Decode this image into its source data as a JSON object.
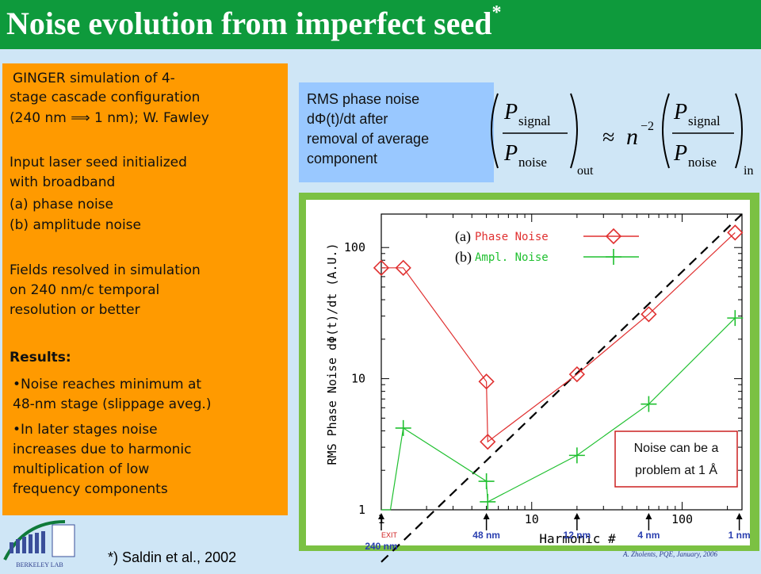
{
  "title": "Noise evolution from imperfect seed",
  "title_mark": "*",
  "left_panel": {
    "lines": [
      " GINGER simulation of 4-",
      "stage cascade configuration",
      "   (240 nm ⟹ 1 nm); W. Fawley",
      "Input laser seed initialized",
      "with broadband",
      "  (a)  phase noise",
      "  (b)  amplitude noise",
      "Fields resolved in simulation",
      "on 240 nm/c temporal",
      "resolution or better",
      " Results:",
      "•Noise reaches minimum at",
      "48-nm stage (slippage aveg.)",
      "•In later stages noise",
      "increases due to harmonic",
      "multiplication of low",
      "frequency components"
    ]
  },
  "rms_box": {
    "lines": [
      "RMS phase noise",
      "dΦ(t)/dt after",
      "removal of average",
      "component"
    ]
  },
  "formula": {
    "p": "P",
    "signal": "signal",
    "noise": "noise",
    "out": "out",
    "in": "in",
    "approx": "≈",
    "n": "n",
    "exp": "−2"
  },
  "chart_data": {
    "type": "line",
    "xscale": "log",
    "yscale": "log",
    "xlabel": "Harmonic #",
    "ylabel": "RMS Phase Noise dΦ(t)/dt (A.U.)",
    "xlim": [
      1,
      250
    ],
    "ylim": [
      1,
      180
    ],
    "xticks": [
      1,
      10,
      100
    ],
    "yticks": [
      1,
      10,
      100
    ],
    "x_tick_labels": [
      "1",
      "10",
      "100"
    ],
    "y_tick_labels": [
      "1",
      "10",
      "100"
    ],
    "series": [
      {
        "name": "Phase Noise",
        "label": "(a)",
        "color": "#e03030",
        "marker": "diamond",
        "x": [
          1,
          1.4,
          5,
          5,
          5.1,
          20,
          60,
          225
        ],
        "y": [
          70,
          70,
          9.5,
          9.5,
          3.3,
          10.8,
          31,
          130
        ]
      },
      {
        "name": "Ampl. Noise",
        "label": "(b)",
        "color": "#20c030",
        "marker": "plus",
        "x": [
          1,
          1.15,
          1.4,
          5,
          5,
          5.1,
          20,
          60,
          225
        ],
        "y": [
          1,
          1,
          4.2,
          1.65,
          1.65,
          1.15,
          2.6,
          6.4,
          29
        ]
      }
    ],
    "reference_line": {
      "x": [
        1,
        250
      ],
      "y": [
        0.4,
        180
      ],
      "style": "dashed"
    },
    "stage_markers": [
      {
        "x": 1,
        "label": "240 nm",
        "sublabel": "EXIT"
      },
      {
        "x": 5,
        "label": "48 nm"
      },
      {
        "x": 20,
        "label": "12 nm"
      },
      {
        "x": 60,
        "label": "4 nm"
      },
      {
        "x": 240,
        "label": "1 nm"
      }
    ],
    "annotation": "Noise can be a problem at 1 Å",
    "grid": false,
    "legend_position": "top-left"
  },
  "footer": "*) Saldin et al., 2002",
  "credit": "A. Zholents, PQE, January, 2006",
  "logo_text": "BERKELEY LAB",
  "colors": {
    "title_bar": "#0e9a3c",
    "panel": "#ff9a00",
    "box": "#99c8ff",
    "frame": "#7bc143",
    "background": "#cfe6f6"
  }
}
